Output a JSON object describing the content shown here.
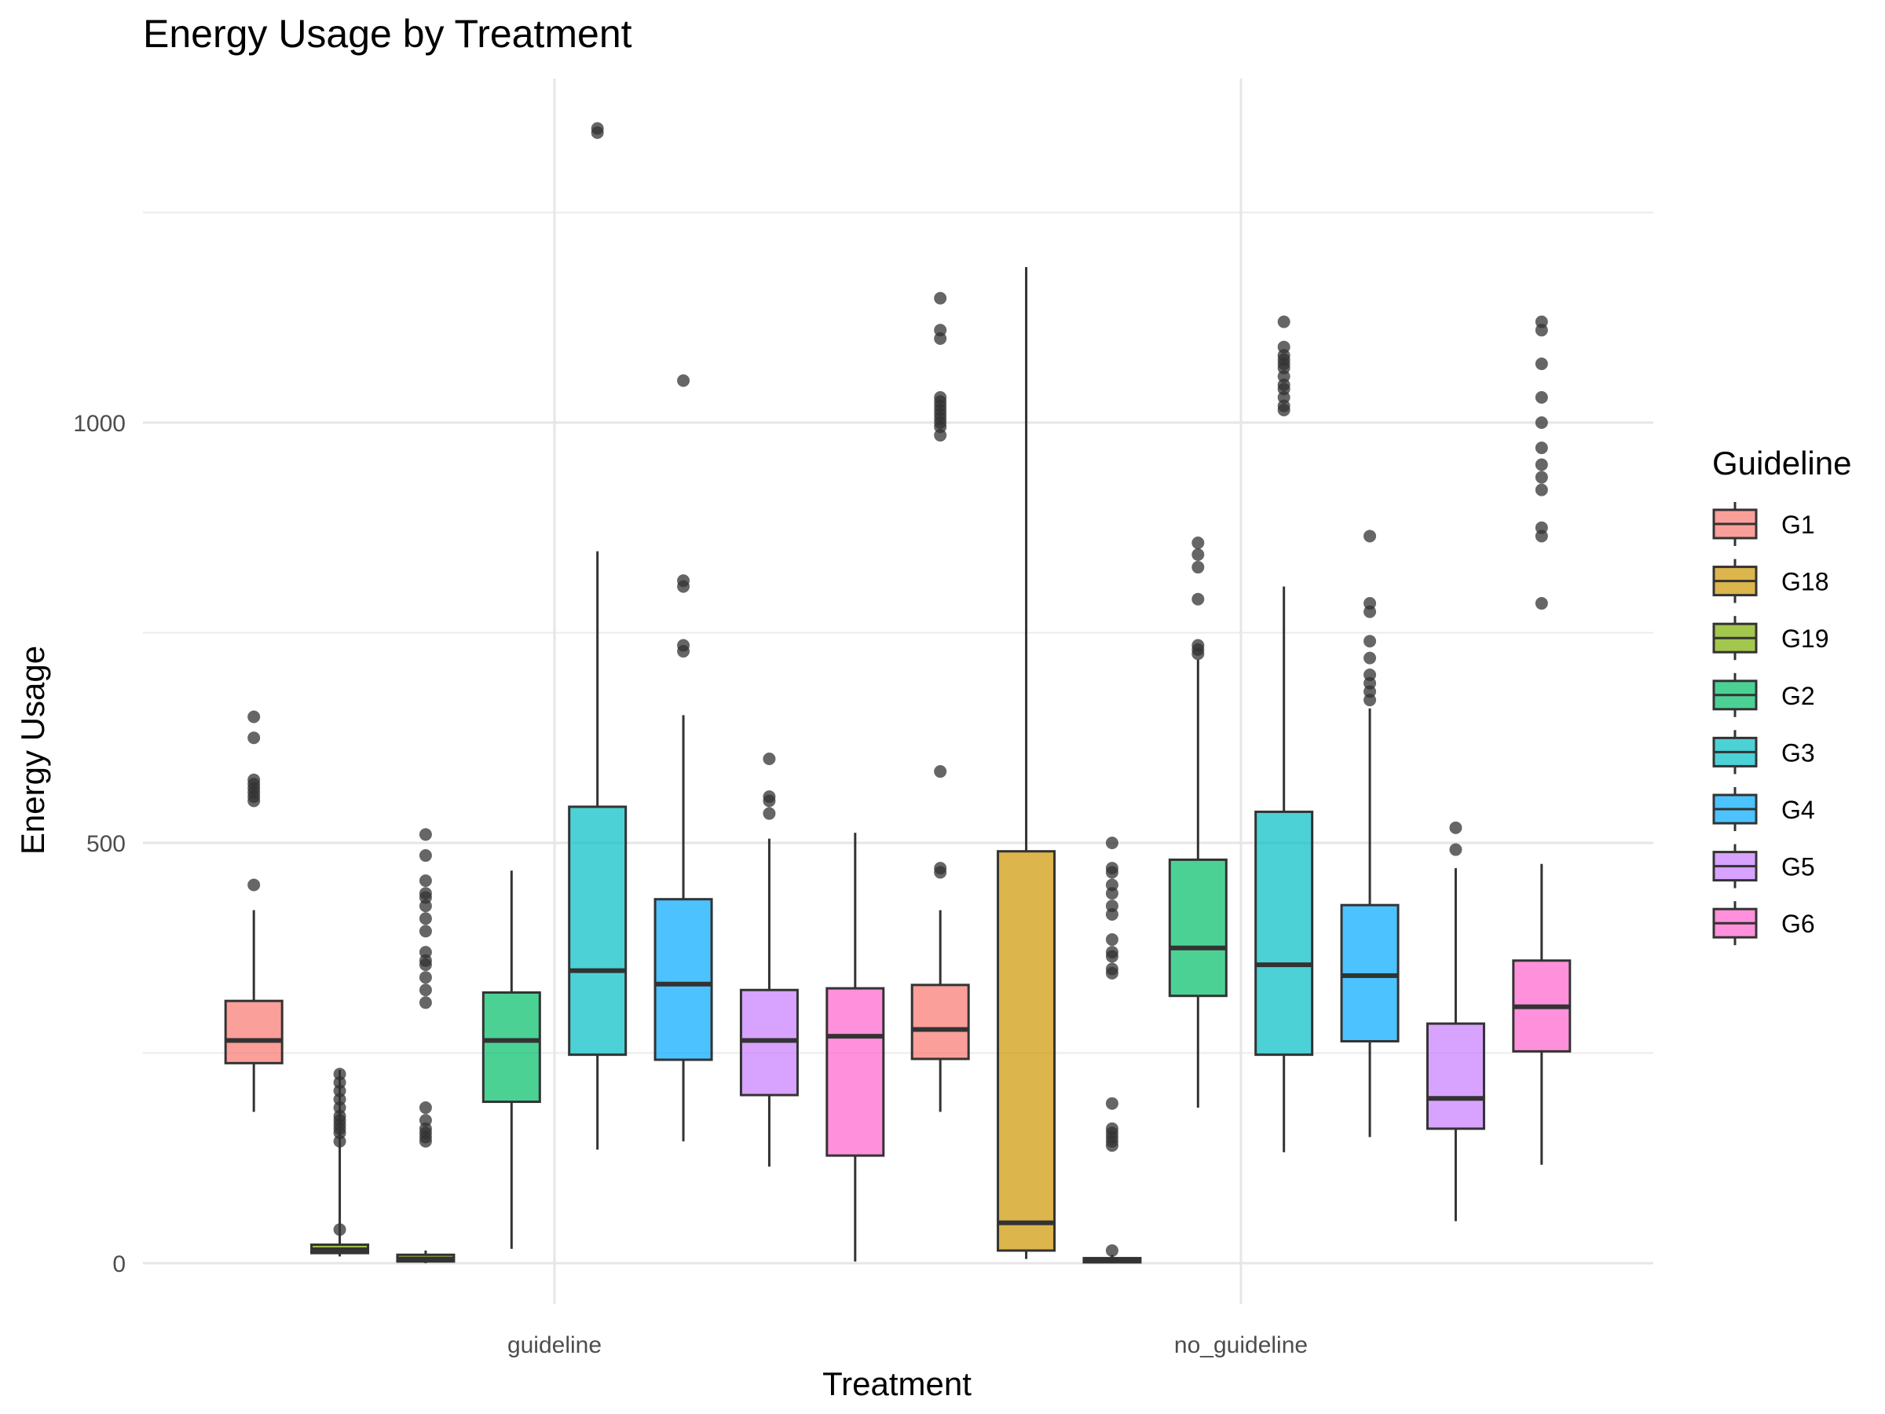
{
  "chart_data": {
    "type": "box",
    "title": "Energy Usage by Treatment",
    "xlabel": "Treatment",
    "ylabel": "Energy Usage",
    "categories": [
      "guideline",
      "no_guideline"
    ],
    "ylim": [
      -40,
      1415
    ],
    "yticks": [
      0,
      500,
      1000
    ],
    "grid": true,
    "legend": {
      "title": "Guideline",
      "placement": "right",
      "entries": [
        {
          "label": "G1",
          "color": "#F8766D"
        },
        {
          "label": "G18",
          "color": "#CD9600"
        },
        {
          "label": "G19",
          "color": "#7CAE00"
        },
        {
          "label": "G2",
          "color": "#00BE67"
        },
        {
          "label": "G3",
          "color": "#00BFC4"
        },
        {
          "label": "G4",
          "color": "#00A9FF"
        },
        {
          "label": "G5",
          "color": "#C77CFF"
        },
        {
          "label": "G6",
          "color": "#FF61CC"
        }
      ]
    },
    "groups": [
      {
        "category": "guideline",
        "boxes": [
          {
            "series": "G1",
            "slot": 0,
            "min": 180,
            "q1": 238,
            "median": 265,
            "q3": 312,
            "max": 420,
            "outliers": [
              450,
              550,
              555,
              560,
              565,
              570,
              575,
              625,
              650
            ]
          },
          {
            "series": "G19",
            "slot": 1,
            "min": 8,
            "q1": 12,
            "median": 16,
            "q3": 22,
            "max": 230,
            "outliers": [
              40,
              145,
              155,
              160,
              165,
              170,
              175,
              185,
              195,
              205,
              215,
              225
            ]
          },
          {
            "series": "G19",
            "slot": 2,
            "min": 0,
            "q1": 2,
            "median": 5,
            "q3": 10,
            "max": 15,
            "outliers": [
              145,
              150,
              155,
              160,
              170,
              185,
              310,
              325,
              340,
              355,
              360,
              370,
              395,
              410,
              425,
              435,
              440,
              455,
              485,
              510
            ]
          },
          {
            "series": "G2",
            "slot": 3,
            "min": 17,
            "q1": 192,
            "median": 265,
            "q3": 322,
            "max": 467,
            "outliers": []
          },
          {
            "series": "G3",
            "slot": 4,
            "min": 135,
            "q1": 248,
            "median": 348,
            "q3": 543,
            "max": 847,
            "outliers": [
              1345,
              1350
            ]
          },
          {
            "series": "G4",
            "slot": 5,
            "min": 145,
            "q1": 242,
            "median": 332,
            "q3": 433,
            "max": 652,
            "outliers": [
              728,
              735,
              805,
              812,
              1050
            ]
          },
          {
            "series": "G5",
            "slot": 6,
            "min": 115,
            "q1": 200,
            "median": 265,
            "q3": 325,
            "max": 505,
            "outliers": [
              535,
              550,
              555,
              600
            ]
          },
          {
            "series": "G6",
            "slot": 7,
            "min": 2,
            "q1": 128,
            "median": 270,
            "q3": 327,
            "max": 512,
            "outliers": []
          }
        ]
      },
      {
        "category": "no_guideline",
        "boxes": [
          {
            "series": "G1",
            "slot": 0,
            "min": 180,
            "q1": 243,
            "median": 278,
            "q3": 331,
            "max": 420,
            "outliers": [
              465,
              470,
              585,
              985,
              995,
              1000,
              1005,
              1010,
              1015,
              1020,
              1025,
              1030,
              1100,
              1110,
              1148
            ]
          },
          {
            "series": "G18",
            "slot": 1,
            "min": 5,
            "q1": 15,
            "median": 48,
            "q3": 490,
            "max": 1185,
            "outliers": []
          },
          {
            "series": "G19",
            "slot": 2,
            "min": 0,
            "q1": 1,
            "median": 3,
            "q3": 6,
            "max": 10,
            "outliers": [
              15,
              140,
              145,
              150,
              155,
              160,
              190,
              345,
              350,
              365,
              370,
              385,
              415,
              425,
              440,
              450,
              465,
              470,
              500
            ]
          },
          {
            "series": "G2",
            "slot": 3,
            "min": 185,
            "q1": 318,
            "median": 375,
            "q3": 480,
            "max": 718,
            "outliers": [
              725,
              730,
              735,
              790,
              828,
              843,
              857
            ]
          },
          {
            "series": "G3",
            "slot": 4,
            "min": 132,
            "q1": 248,
            "median": 355,
            "q3": 537,
            "max": 805,
            "outliers": [
              1015,
              1020,
              1030,
              1040,
              1045,
              1055,
              1065,
              1070,
              1075,
              1080,
              1090,
              1120
            ]
          },
          {
            "series": "G4",
            "slot": 5,
            "min": 150,
            "q1": 264,
            "median": 342,
            "q3": 426,
            "max": 660,
            "outliers": [
              670,
              680,
              690,
              700,
              720,
              740,
              775,
              785,
              865
            ]
          },
          {
            "series": "G5",
            "slot": 6,
            "min": 50,
            "q1": 160,
            "median": 196,
            "q3": 285,
            "max": 470,
            "outliers": [
              492,
              518
            ]
          },
          {
            "series": "G6",
            "slot": 7,
            "min": 117,
            "q1": 252,
            "median": 305,
            "q3": 360,
            "max": 475,
            "outliers": [
              785,
              865,
              875,
              920,
              935,
              950,
              970,
              1000,
              1030,
              1070,
              1110,
              1120
            ]
          }
        ]
      }
    ]
  }
}
